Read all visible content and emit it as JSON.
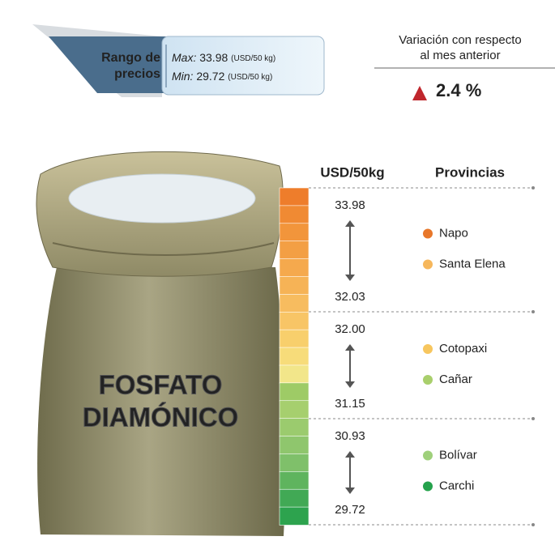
{
  "header": {
    "range_label": [
      "Rango de",
      "precios"
    ],
    "max": {
      "label": "Max:",
      "value": "33.98",
      "unit": "(USD/50 kg)"
    },
    "min": {
      "label": "Min:",
      "value": "29.72",
      "unit": "(USD/50 kg)"
    }
  },
  "variation": {
    "title": [
      "Variación con respecto",
      "al mes anterior"
    ],
    "value": "2.4 %",
    "direction_color": "#c0272d"
  },
  "product": {
    "name": [
      "FOSFATO",
      "DIAMÓNICO"
    ]
  },
  "columns": {
    "price": "USD/50kg",
    "provinces": "Provincias"
  },
  "tiers": [
    {
      "high": "33.98",
      "low": "32.03",
      "provinces": [
        {
          "name": "Napo",
          "color": "#e8772a"
        },
        {
          "name": "Santa Elena",
          "color": "#f6b75c"
        }
      ]
    },
    {
      "high": "32.00",
      "low": "31.15",
      "provinces": [
        {
          "name": "Cotopaxi",
          "color": "#f7c65e"
        },
        {
          "name": "Cañar",
          "color": "#a9cf6c"
        }
      ]
    },
    {
      "high": "30.93",
      "low": "29.72",
      "provinces": [
        {
          "name": "Bolívar",
          "color": "#9fd07b"
        },
        {
          "name": "Carchi",
          "color": "#25a24c"
        }
      ]
    }
  ]
}
